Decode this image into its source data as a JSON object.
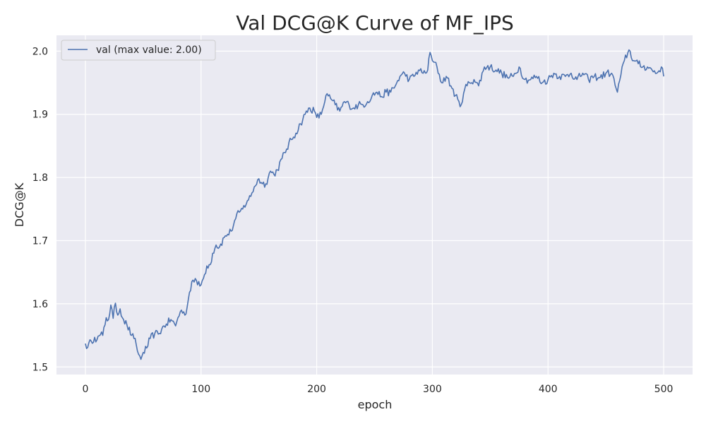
{
  "chart_data": {
    "type": "line",
    "title": "Val DCG@K Curve of MF_IPS",
    "xlabel": "epoch",
    "ylabel": "DCG@K",
    "xlim": [
      -25,
      525
    ],
    "ylim": [
      1.488,
      2.025
    ],
    "x_ticks": [
      0,
      100,
      200,
      300,
      400,
      500
    ],
    "x_tick_labels": [
      "0",
      "100",
      "200",
      "300",
      "400",
      "500"
    ],
    "y_ticks": [
      1.5,
      1.6,
      1.7,
      1.8,
      1.9,
      2.0
    ],
    "y_tick_labels": [
      "1.5",
      "1.6",
      "1.7",
      "1.8",
      "1.9",
      "2.0"
    ],
    "grid": true,
    "legend_position": "top-left",
    "colors": {
      "background": "#EAEAF2",
      "grid": "#FFFFFF",
      "line": "#4C72B0"
    },
    "series": [
      {
        "name": "val (max value: 2.00)",
        "anchors_x": [
          0,
          2,
          5,
          8,
          10,
          13,
          15,
          18,
          20,
          22,
          24,
          26,
          28,
          30,
          33,
          36,
          40,
          42,
          44,
          46,
          48,
          50,
          53,
          56,
          60,
          63,
          66,
          70,
          74,
          78,
          80,
          83,
          86,
          88,
          90,
          92,
          95,
          97,
          100,
          102,
          105,
          108,
          110,
          113,
          116,
          120,
          123,
          126,
          130,
          133,
          136,
          140,
          143,
          146,
          150,
          153,
          156,
          160,
          163,
          166,
          170,
          174,
          178,
          182,
          186,
          190,
          194,
          198,
          200,
          204,
          208,
          212,
          216,
          220,
          224,
          228,
          232,
          236,
          240,
          244,
          248,
          252,
          256,
          260,
          264,
          268,
          272,
          276,
          280,
          284,
          288,
          292,
          296,
          298,
          300,
          304,
          308,
          312,
          316,
          320,
          324,
          328,
          332,
          336,
          340,
          345,
          350,
          355,
          360,
          365,
          370,
          375,
          380,
          385,
          390,
          395,
          400,
          405,
          410,
          415,
          420,
          425,
          430,
          435,
          440,
          445,
          450,
          455,
          460,
          463,
          466,
          470,
          474,
          478,
          482,
          486,
          490,
          494,
          498,
          500
        ],
        "anchors_y": [
          1.537,
          1.531,
          1.541,
          1.547,
          1.543,
          1.551,
          1.55,
          1.578,
          1.575,
          1.598,
          1.577,
          1.601,
          1.582,
          1.592,
          1.575,
          1.566,
          1.55,
          1.545,
          1.535,
          1.52,
          1.512,
          1.523,
          1.53,
          1.545,
          1.553,
          1.552,
          1.56,
          1.568,
          1.575,
          1.565,
          1.578,
          1.59,
          1.582,
          1.595,
          1.618,
          1.635,
          1.64,
          1.63,
          1.63,
          1.64,
          1.66,
          1.662,
          1.68,
          1.693,
          1.69,
          1.705,
          1.71,
          1.715,
          1.735,
          1.745,
          1.75,
          1.763,
          1.77,
          1.785,
          1.798,
          1.79,
          1.79,
          1.81,
          1.805,
          1.812,
          1.83,
          1.845,
          1.86,
          1.87,
          1.885,
          1.9,
          1.91,
          1.905,
          1.895,
          1.9,
          1.93,
          1.925,
          1.915,
          1.905,
          1.92,
          1.915,
          1.91,
          1.915,
          1.915,
          1.92,
          1.93,
          1.935,
          1.928,
          1.935,
          1.935,
          1.945,
          1.96,
          1.965,
          1.955,
          1.96,
          1.97,
          1.965,
          1.97,
          1.998,
          1.985,
          1.975,
          1.95,
          1.96,
          1.945,
          1.93,
          1.912,
          1.94,
          1.95,
          1.955,
          1.945,
          1.975,
          1.975,
          1.97,
          1.965,
          1.958,
          1.96,
          1.975,
          1.955,
          1.955,
          1.96,
          1.95,
          1.955,
          1.965,
          1.96,
          1.96,
          1.965,
          1.955,
          1.965,
          1.955,
          1.96,
          1.958,
          1.965,
          1.965,
          1.935,
          1.962,
          1.985,
          2.002,
          1.985,
          1.98,
          1.975,
          1.975,
          1.97,
          1.965,
          1.975,
          1.96
        ]
      }
    ]
  }
}
